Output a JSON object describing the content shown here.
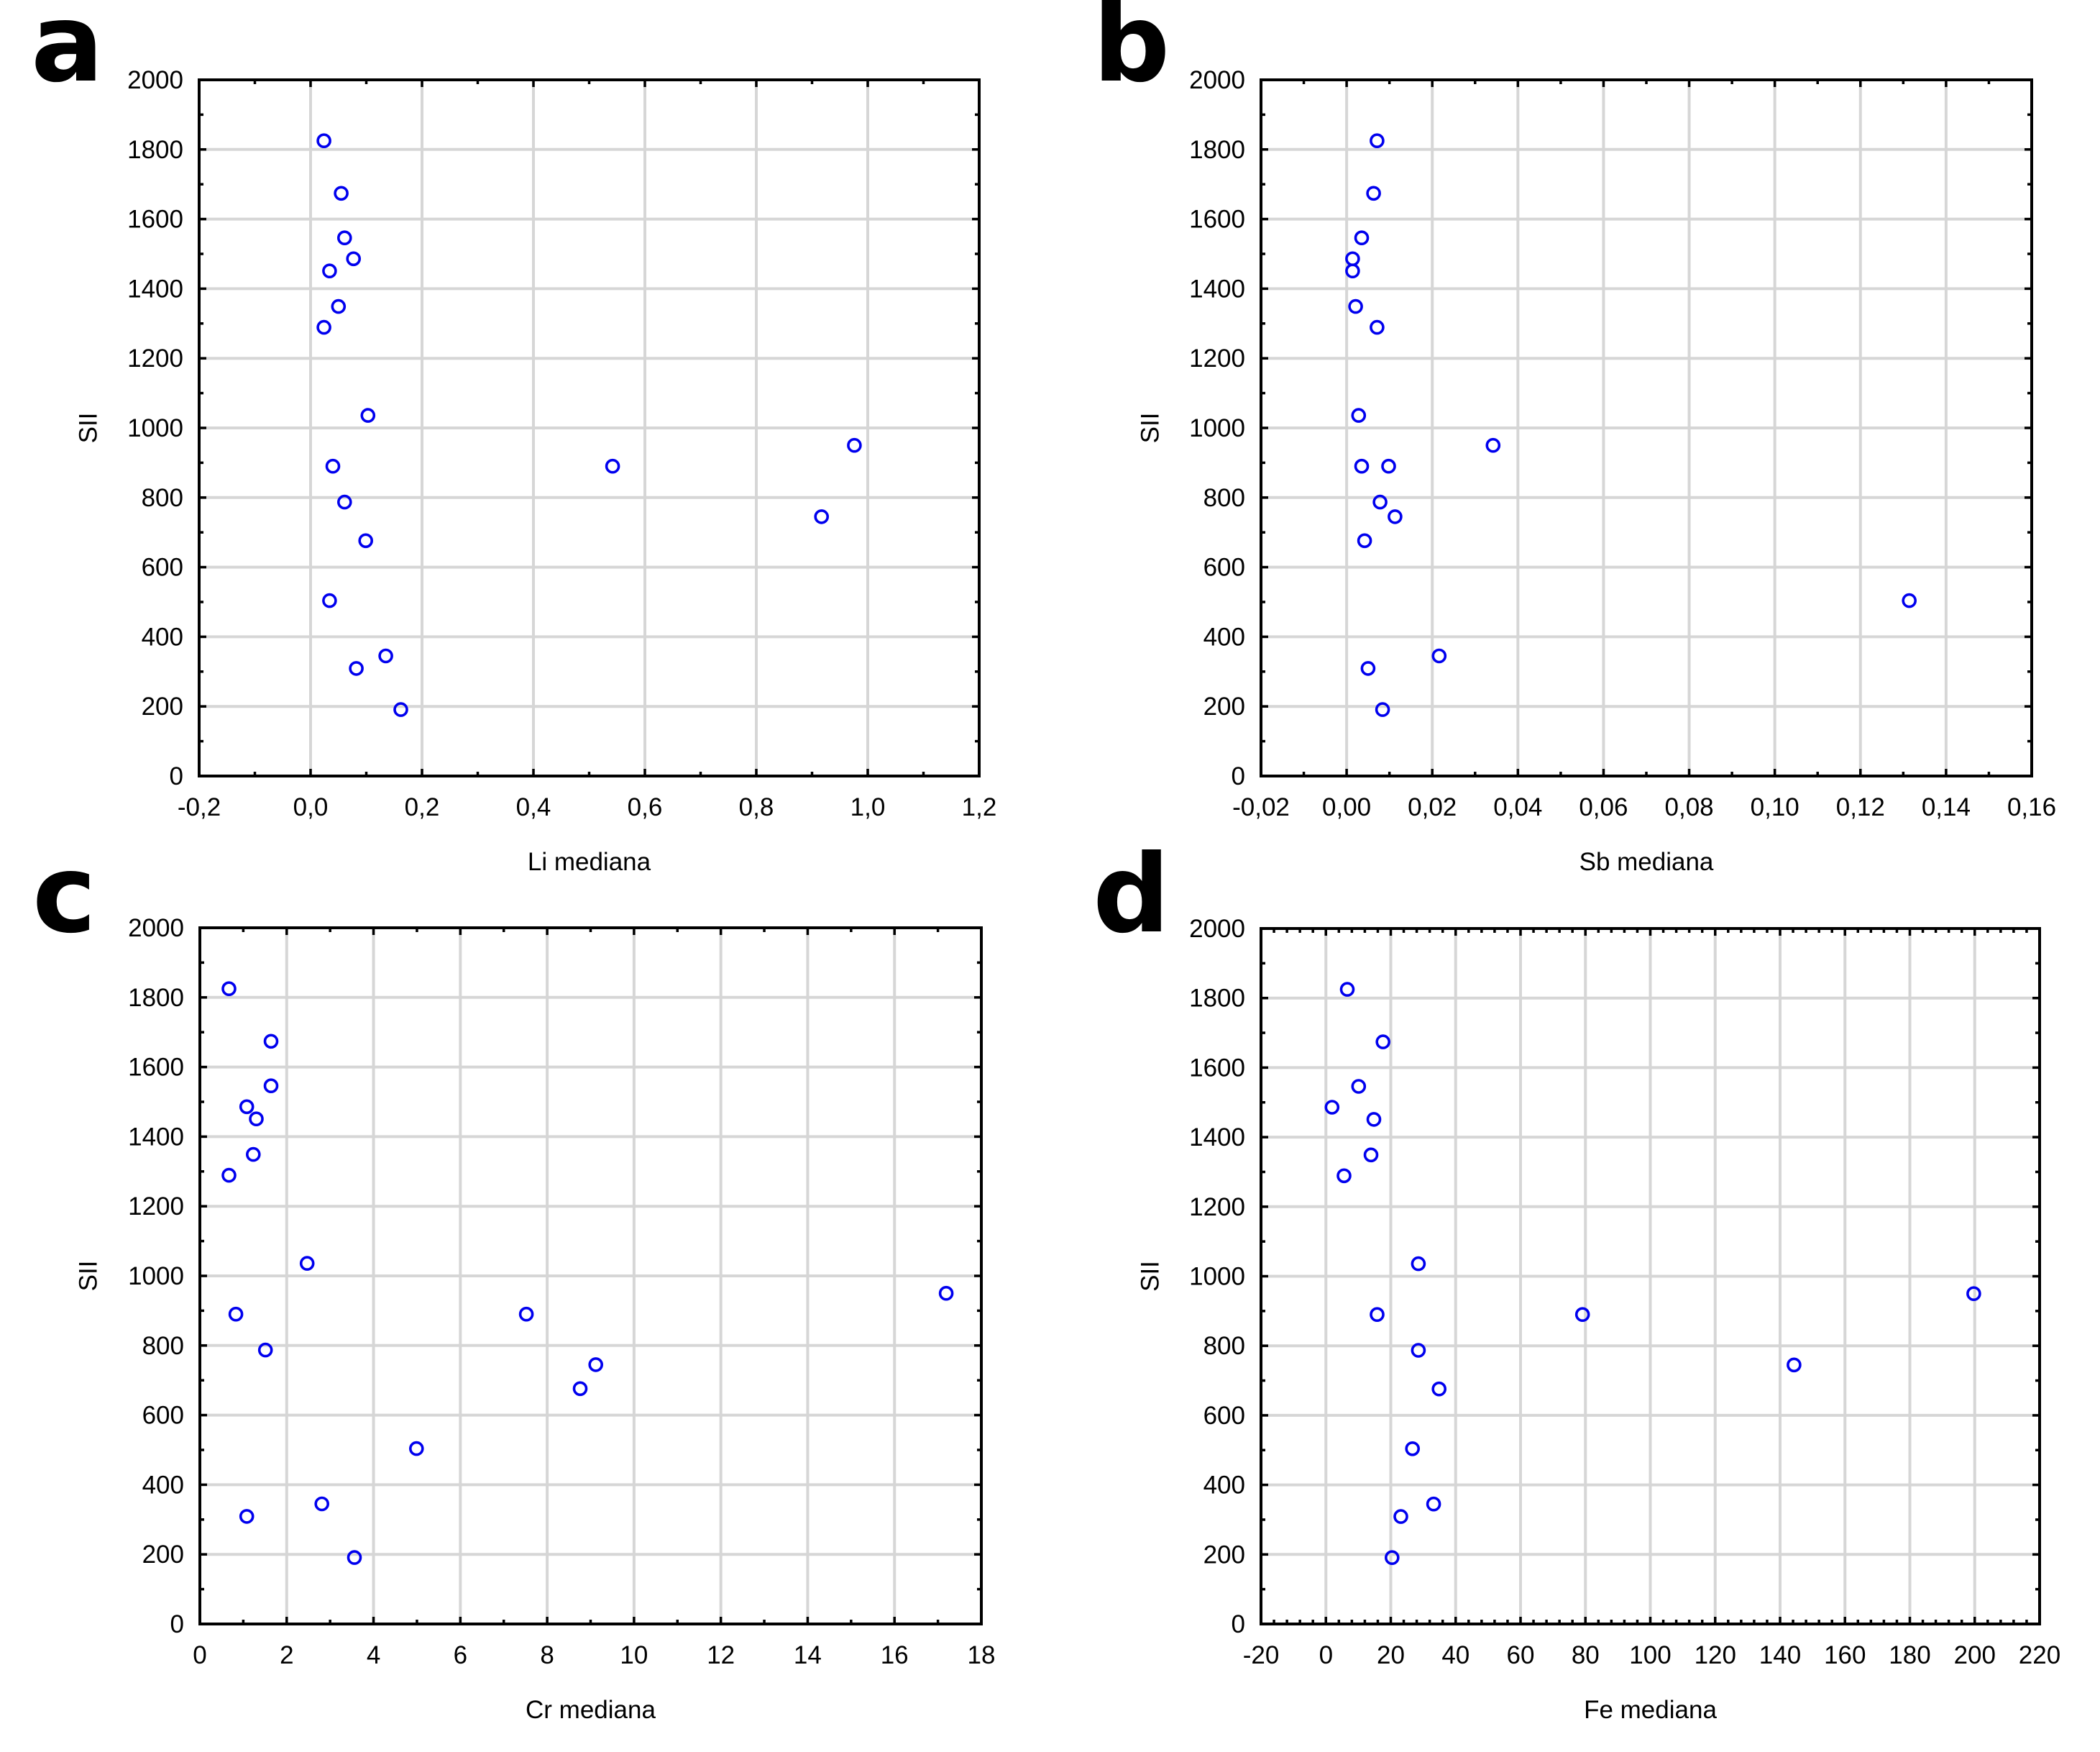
{
  "figure": {
    "background": "#ffffff",
    "marker_color": "#0000ee",
    "grid_color": "#d6d6d6",
    "frame_color": "#000000"
  },
  "chart_data": [
    {
      "panel": "a",
      "type": "scatter",
      "title": "",
      "xlabel": "Li mediana",
      "ylabel": "SII",
      "xlim": [
        -0.2,
        1.2
      ],
      "ylim": [
        0,
        2000
      ],
      "xticks": [
        -0.2,
        0.0,
        0.2,
        0.4,
        0.6,
        0.8,
        1.0,
        1.2
      ],
      "xtick_labels": [
        "-0,2",
        "0,0",
        "0,2",
        "0,4",
        "0,6",
        "0,8",
        "1,0",
        "1,2"
      ],
      "x_minor_step": 0.1,
      "yticks": [
        0,
        200,
        400,
        600,
        800,
        1000,
        1200,
        1400,
        1600,
        1800,
        2000
      ],
      "ytick_labels": [
        "0",
        "200",
        "400",
        "600",
        "800",
        "1000",
        "1200",
        "1400",
        "1600",
        "1800",
        "2000"
      ],
      "y_minor_step": 100,
      "grid": true,
      "marker": "open-circle",
      "x": [
        0.024,
        0.055,
        0.061,
        0.077,
        0.034,
        0.05,
        0.024,
        0.103,
        0.04,
        0.061,
        0.542,
        0.976,
        0.917,
        0.099,
        0.034,
        0.135,
        0.082,
        0.162
      ],
      "y": [
        1825,
        1674,
        1546,
        1486,
        1451,
        1349,
        1289,
        1036,
        890,
        787,
        890,
        950,
        745,
        676,
        504,
        345,
        309,
        191
      ]
    },
    {
      "panel": "b",
      "type": "scatter",
      "title": "",
      "xlabel": "Sb mediana",
      "ylabel": "SII",
      "xlim": [
        -0.02,
        0.16
      ],
      "ylim": [
        0,
        2000
      ],
      "xticks": [
        -0.02,
        0.0,
        0.02,
        0.04,
        0.06,
        0.08,
        0.1,
        0.12,
        0.14,
        0.16
      ],
      "xtick_labels": [
        "-0,02",
        "0,00",
        "0,02",
        "0,04",
        "0,06",
        "0,08",
        "0,10",
        "0,12",
        "0,14",
        "0,16"
      ],
      "x_minor_step": 0.01,
      "yticks": [
        0,
        200,
        400,
        600,
        800,
        1000,
        1200,
        1400,
        1600,
        1800,
        2000
      ],
      "ytick_labels": [
        "0",
        "200",
        "400",
        "600",
        "800",
        "1000",
        "1200",
        "1400",
        "1600",
        "1800",
        "2000"
      ],
      "y_minor_step": 100,
      "grid": true,
      "marker": "open-circle",
      "x": [
        0.0071,
        0.0063,
        0.0035,
        0.0014,
        0.0014,
        0.0021,
        0.0071,
        0.0028,
        0.0342,
        0.0035,
        0.0098,
        0.0078,
        0.0113,
        0.0042,
        0.1314,
        0.0216,
        0.005,
        0.0084
      ],
      "y": [
        1825,
        1674,
        1546,
        1486,
        1451,
        1349,
        1289,
        1036,
        950,
        890,
        890,
        787,
        745,
        676,
        504,
        345,
        309,
        191
      ]
    },
    {
      "panel": "c",
      "type": "scatter",
      "title": "",
      "xlabel": "Cr mediana",
      "ylabel": "SII",
      "xlim": [
        0,
        18
      ],
      "ylim": [
        0,
        2000
      ],
      "xticks": [
        0,
        2,
        4,
        6,
        8,
        10,
        12,
        14,
        16,
        18
      ],
      "xtick_labels": [
        "0",
        "2",
        "4",
        "6",
        "8",
        "10",
        "12",
        "14",
        "16",
        "18"
      ],
      "x_minor_step": 1,
      "yticks": [
        0,
        200,
        400,
        600,
        800,
        1000,
        1200,
        1400,
        1600,
        1800,
        2000
      ],
      "ytick_labels": [
        "0",
        "200",
        "400",
        "600",
        "800",
        "1000",
        "1200",
        "1400",
        "1600",
        "1800",
        "2000"
      ],
      "y_minor_step": 100,
      "grid": true,
      "marker": "open-circle",
      "x": [
        0.67,
        1.64,
        1.64,
        1.08,
        1.3,
        1.23,
        0.67,
        2.47,
        0.83,
        1.51,
        7.52,
        9.12,
        8.76,
        17.19,
        4.99,
        2.81,
        1.08,
        3.56
      ],
      "y": [
        1825,
        1674,
        1546,
        1486,
        1451,
        1349,
        1289,
        1036,
        890,
        787,
        890,
        745,
        676,
        950,
        504,
        345,
        309,
        191
      ]
    },
    {
      "panel": "d",
      "type": "scatter",
      "title": "",
      "xlabel": "Fe mediana",
      "ylabel": "SII",
      "xlim": [
        -20,
        220
      ],
      "ylim": [
        0,
        2000
      ],
      "xticks": [
        -20,
        0,
        20,
        40,
        60,
        80,
        100,
        120,
        140,
        160,
        180,
        200,
        220
      ],
      "xtick_labels": [
        "-20",
        "0",
        "20",
        "40",
        "60",
        "80",
        "100",
        "120",
        "140",
        "160",
        "180",
        "200",
        "220"
      ],
      "x_minor_step": 4,
      "yticks": [
        0,
        200,
        400,
        600,
        800,
        1000,
        1200,
        1400,
        1600,
        1800,
        2000
      ],
      "ytick_labels": [
        "0",
        "200",
        "400",
        "600",
        "800",
        "1000",
        "1200",
        "1400",
        "1600",
        "1800",
        "2000"
      ],
      "y_minor_step": 100,
      "grid": true,
      "marker": "open-circle",
      "x": [
        6.6,
        17.6,
        10.1,
        1.9,
        14.8,
        13.9,
        5.6,
        28.5,
        15.8,
        28.5,
        79.1,
        144.3,
        34.9,
        199.7,
        26.7,
        33.2,
        23.1,
        20.4
      ],
      "y": [
        1825,
        1674,
        1546,
        1486,
        1451,
        1349,
        1289,
        1036,
        890,
        787,
        890,
        745,
        676,
        950,
        504,
        345,
        309,
        191
      ]
    }
  ]
}
